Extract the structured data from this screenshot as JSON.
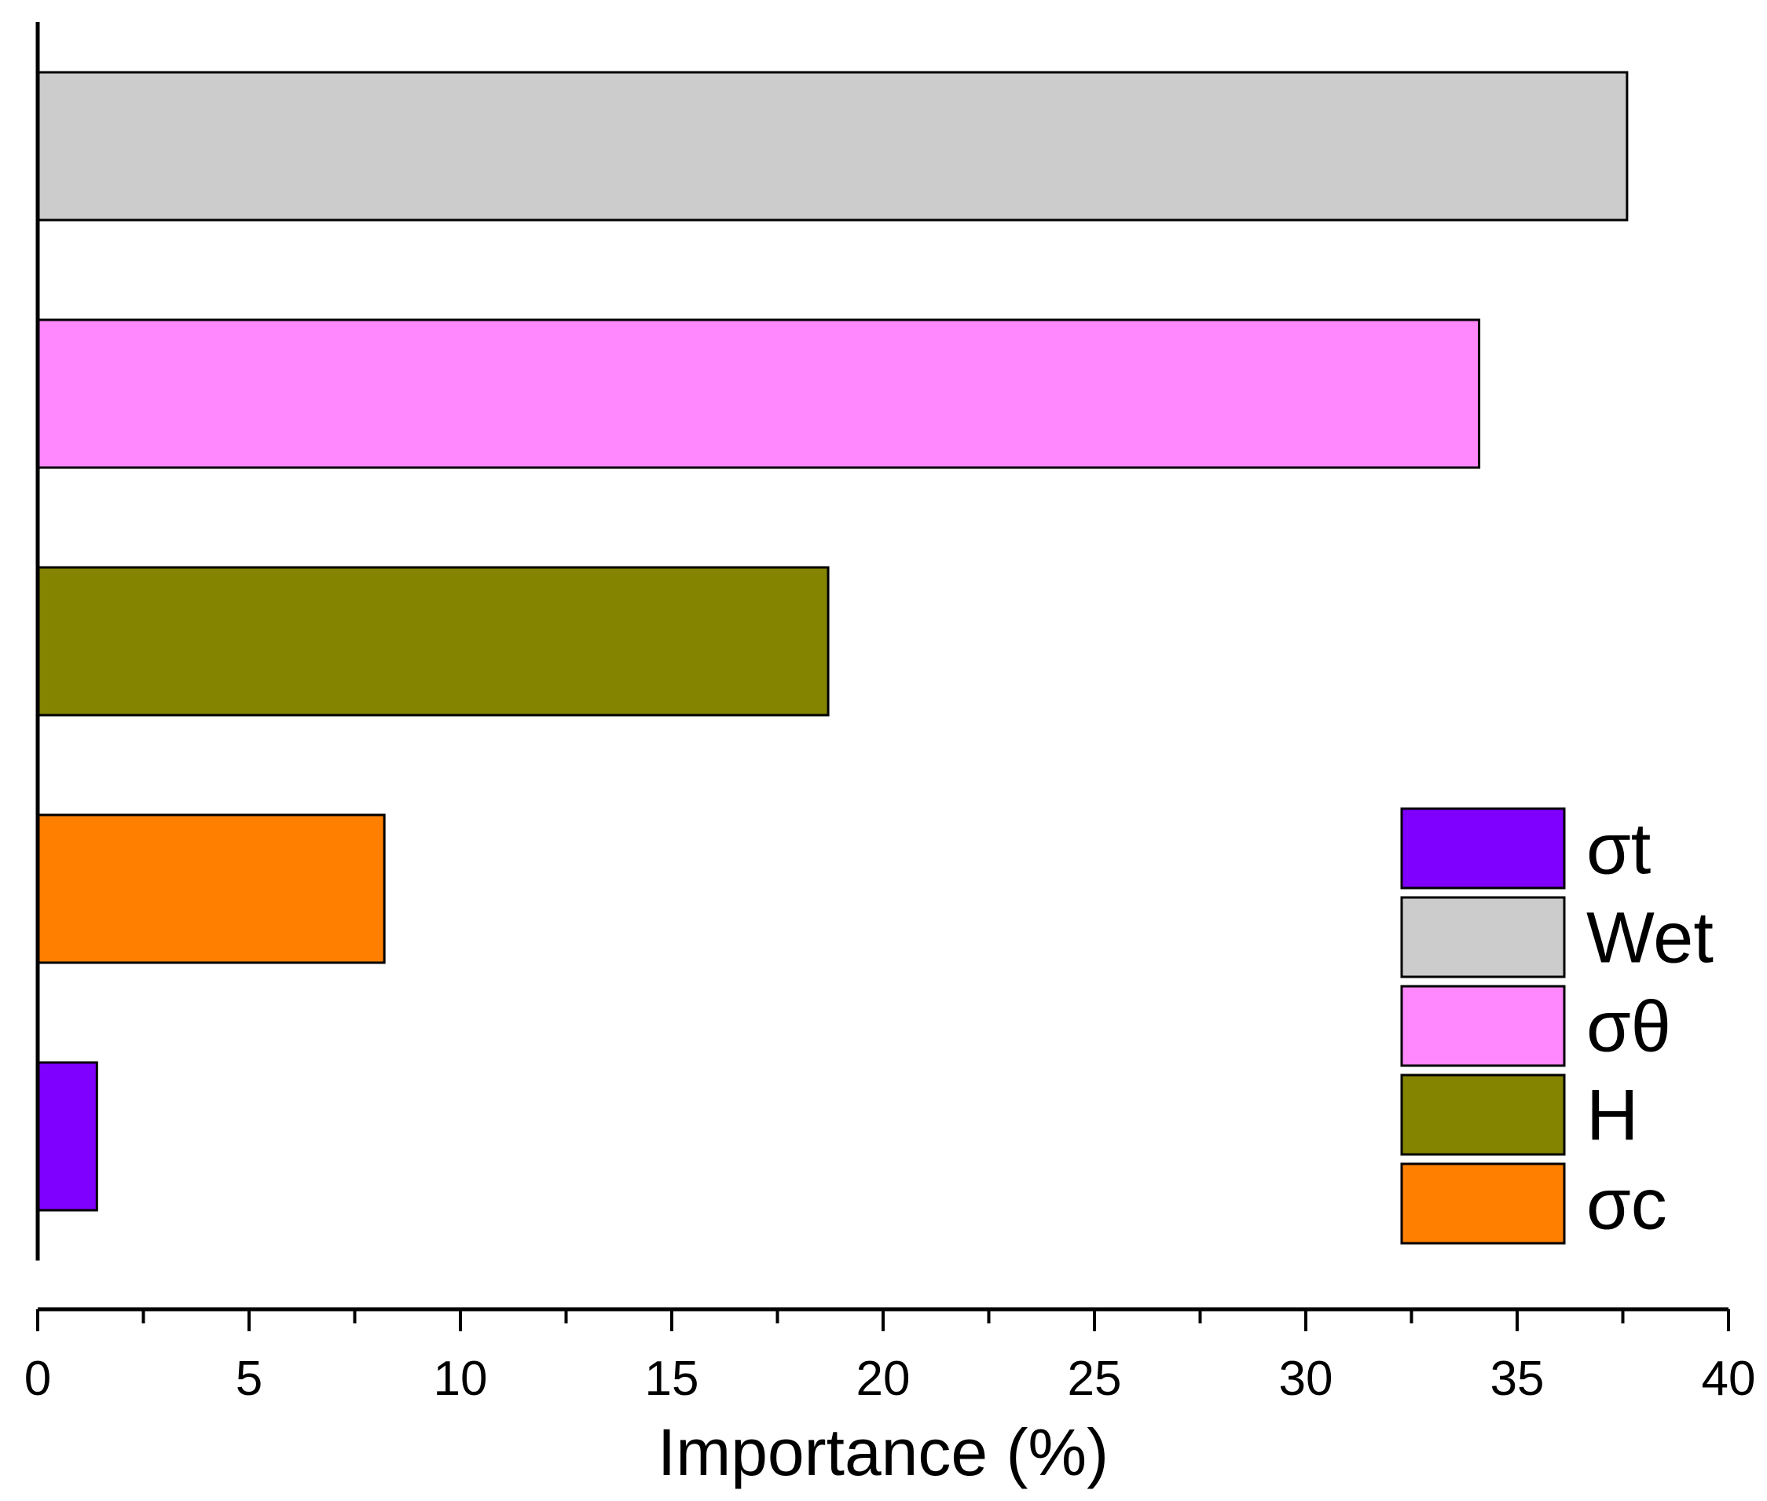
{
  "chart_data": {
    "type": "bar",
    "orientation": "horizontal",
    "title": "",
    "xlabel": "Importance (%)",
    "ylabel": "",
    "xlim": [
      0,
      40
    ],
    "major_ticks": [
      0,
      5,
      10,
      15,
      20,
      25,
      30,
      35,
      40
    ],
    "tick_labels": [
      "0",
      "5",
      "10",
      "15",
      "20",
      "25",
      "30",
      "35",
      "40"
    ],
    "minor_tick_step": 2.5,
    "grid": false,
    "legend_position": "bottom-right",
    "bars_top_to_bottom": [
      {
        "category": "Wet",
        "value": 37.6,
        "color": "#cccccc"
      },
      {
        "category": "σθ",
        "value": 34.1,
        "color": "#ff88ff"
      },
      {
        "category": "H",
        "value": 18.7,
        "color": "#848400"
      },
      {
        "category": "σc",
        "value": 8.2,
        "color": "#ff8000"
      },
      {
        "category": "σt",
        "value": 1.4,
        "color": "#8000ff"
      }
    ],
    "legend": [
      {
        "label": "σt",
        "color": "#8000ff"
      },
      {
        "label": "Wet",
        "color": "#cccccc"
      },
      {
        "label": "σθ",
        "color": "#ff88ff"
      },
      {
        "label": "H",
        "color": "#848400"
      },
      {
        "label": "σc",
        "color": "#ff8000"
      }
    ]
  }
}
